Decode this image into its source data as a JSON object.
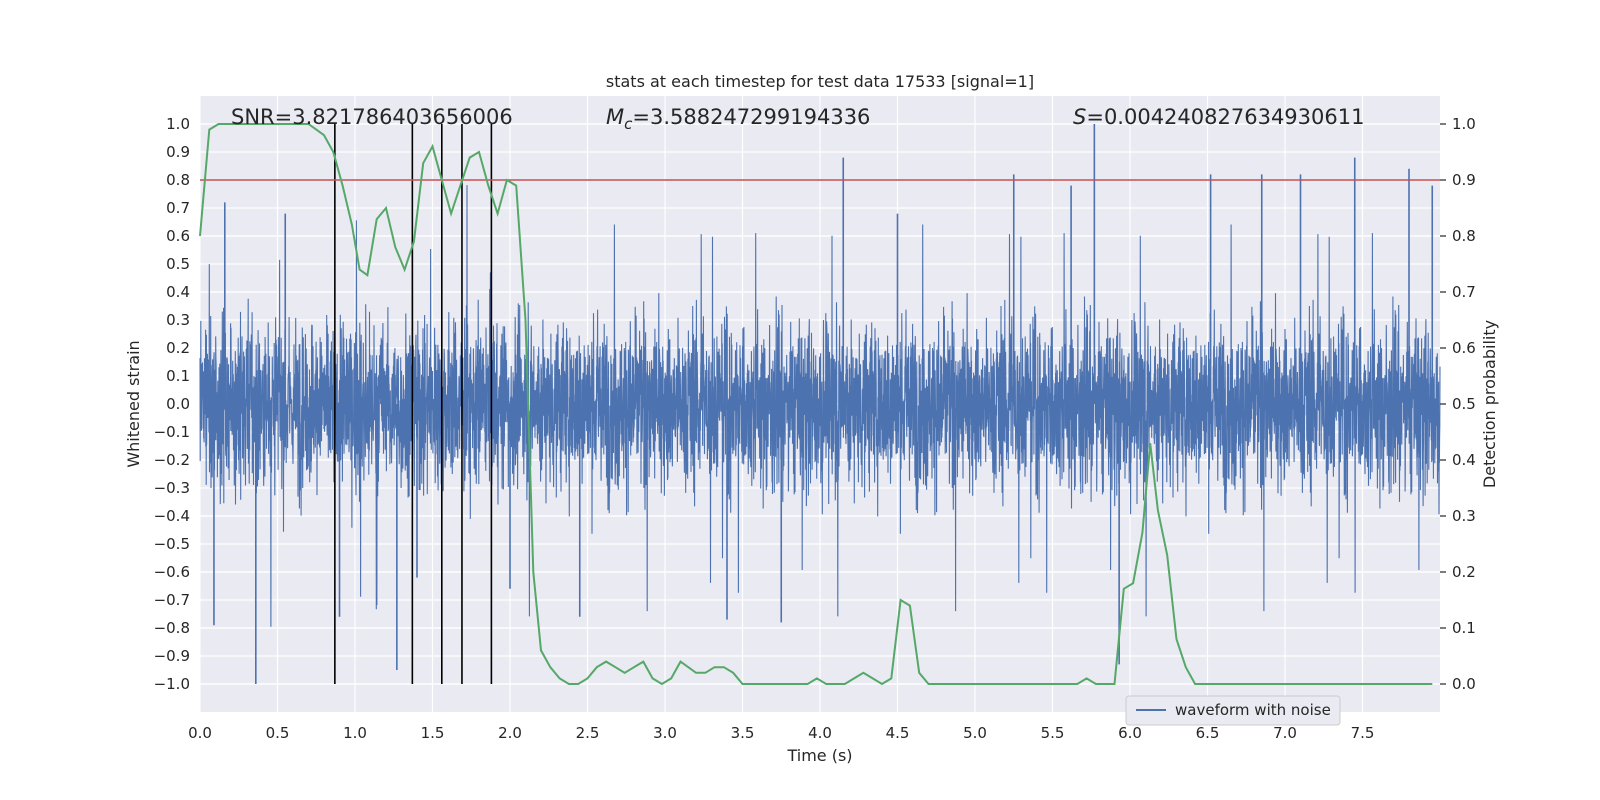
{
  "chart_data": {
    "type": "line",
    "title": "stats at each timestep for test data 17533 [signal=1]",
    "xlabel": "Time (s)",
    "ylabel": "Whitened strain",
    "ylabel_right": "Detection probability",
    "xlim": [
      0,
      8.0
    ],
    "ylim": [
      -1.1,
      1.1
    ],
    "ylim_right": [
      -0.05,
      1.05
    ],
    "x_ticks": [
      0.0,
      0.5,
      1.0,
      1.5,
      2.0,
      2.5,
      3.0,
      3.5,
      4.0,
      4.5,
      5.0,
      5.5,
      6.0,
      6.5,
      7.0,
      7.5
    ],
    "x_tick_labels": [
      "0.0",
      "0.5",
      "1.0",
      "1.5",
      "2.0",
      "2.5",
      "3.0",
      "3.5",
      "4.0",
      "4.5",
      "5.0",
      "5.5",
      "6.0",
      "6.5",
      "7.0",
      "7.5"
    ],
    "y_ticks": [
      -1.0,
      -0.9,
      -0.8,
      -0.7,
      -0.6,
      -0.5,
      -0.4,
      -0.3,
      -0.2,
      -0.1,
      0.0,
      0.1,
      0.2,
      0.3,
      0.4,
      0.5,
      0.6,
      0.7,
      0.8,
      0.9,
      1.0
    ],
    "y_tick_labels": [
      "−1.0",
      "−0.9",
      "−0.8",
      "−0.7",
      "−0.6",
      "−0.5",
      "−0.4",
      "−0.3",
      "−0.2",
      "−0.1",
      "0.0",
      "0.1",
      "0.2",
      "0.3",
      "0.4",
      "0.5",
      "0.6",
      "0.7",
      "0.8",
      "0.9",
      "1.0"
    ],
    "y_right_ticks": [
      0.0,
      0.1,
      0.2,
      0.3,
      0.4,
      0.5,
      0.6,
      0.7,
      0.8,
      0.9,
      1.0
    ],
    "y_right_tick_labels": [
      "0.0",
      "0.1",
      "0.2",
      "0.3",
      "0.4",
      "0.5",
      "0.6",
      "0.7",
      "0.8",
      "0.9",
      "1.0"
    ],
    "annotations": {
      "snr": "SNR=3.821786403656006",
      "mc_symbol": "M",
      "mc_subscript": "c",
      "mc_value": "=3.588247299194336",
      "s_symbol": "S",
      "s_value": "=0.004240827634930611"
    },
    "legend": {
      "label": "waveform with noise",
      "position": "lower-right"
    },
    "waveform": {
      "name": "waveform with noise",
      "color": "#4c72b0",
      "note": "dense noisy strain, band roughly ±0.4 with spikes to ±1.0",
      "spikes": [
        [
          0.36,
          -1.0
        ],
        [
          0.09,
          -0.79
        ],
        [
          0.16,
          0.72
        ],
        [
          0.55,
          0.68
        ],
        [
          0.9,
          -0.76
        ],
        [
          1.27,
          -0.95
        ],
        [
          1.4,
          -0.62
        ],
        [
          2.0,
          -0.66
        ],
        [
          2.45,
          -0.76
        ],
        [
          3.4,
          -0.77
        ],
        [
          3.75,
          -0.78
        ],
        [
          4.15,
          0.88
        ],
        [
          4.5,
          0.68
        ],
        [
          5.25,
          0.82
        ],
        [
          5.62,
          0.78
        ],
        [
          5.77,
          1.0
        ],
        [
          5.93,
          -0.93
        ],
        [
          6.52,
          0.82
        ],
        [
          6.85,
          0.82
        ],
        [
          7.1,
          0.82
        ],
        [
          7.45,
          0.88
        ],
        [
          7.8,
          0.84
        ],
        [
          7.95,
          0.78
        ]
      ]
    },
    "detection_probability": {
      "name": "detection probability",
      "color": "#55a868",
      "x": [
        0.0,
        0.06,
        0.12,
        0.2,
        0.3,
        0.4,
        0.5,
        0.6,
        0.7,
        0.75,
        0.8,
        0.86,
        0.92,
        0.98,
        1.03,
        1.08,
        1.14,
        1.2,
        1.26,
        1.32,
        1.38,
        1.44,
        1.5,
        1.56,
        1.62,
        1.68,
        1.74,
        1.8,
        1.86,
        1.92,
        1.98,
        2.04,
        2.1,
        2.15,
        2.2,
        2.26,
        2.32,
        2.38,
        2.44,
        2.5,
        2.56,
        2.62,
        2.68,
        2.74,
        2.8,
        2.86,
        2.92,
        2.98,
        3.04,
        3.1,
        3.15,
        3.2,
        3.26,
        3.32,
        3.38,
        3.44,
        3.5,
        3.56,
        3.62,
        3.68,
        3.74,
        3.8,
        3.86,
        3.92,
        3.98,
        4.04,
        4.1,
        4.16,
        4.22,
        4.28,
        4.34,
        4.4,
        4.46,
        4.52,
        4.58,
        4.64,
        4.7,
        4.76,
        4.82,
        4.88,
        4.94,
        5.0,
        5.06,
        5.12,
        5.18,
        5.24,
        5.3,
        5.36,
        5.42,
        5.48,
        5.54,
        5.6,
        5.66,
        5.72,
        5.78,
        5.84,
        5.9,
        5.96,
        6.02,
        6.08,
        6.13,
        6.18,
        6.24,
        6.3,
        6.36,
        6.42,
        6.48,
        6.54,
        6.6,
        6.66,
        6.72,
        6.8,
        6.9,
        7.0,
        7.1,
        7.2,
        7.3,
        7.4,
        7.5,
        7.6,
        7.7,
        7.8,
        7.9,
        7.95
      ],
      "y": [
        0.8,
        0.99,
        1.0,
        1.0,
        1.0,
        1.0,
        1.0,
        1.0,
        1.0,
        0.99,
        0.98,
        0.95,
        0.89,
        0.82,
        0.74,
        0.73,
        0.83,
        0.85,
        0.78,
        0.74,
        0.79,
        0.93,
        0.96,
        0.9,
        0.84,
        0.89,
        0.94,
        0.95,
        0.89,
        0.84,
        0.9,
        0.89,
        0.65,
        0.2,
        0.06,
        0.03,
        0.01,
        0.0,
        0.0,
        0.01,
        0.03,
        0.04,
        0.03,
        0.02,
        0.03,
        0.04,
        0.01,
        0.0,
        0.01,
        0.04,
        0.03,
        0.02,
        0.02,
        0.03,
        0.03,
        0.02,
        0.0,
        0.0,
        0.0,
        0.0,
        0.0,
        0.0,
        0.0,
        0.0,
        0.01,
        0.0,
        0.0,
        0.0,
        0.01,
        0.02,
        0.01,
        0.0,
        0.01,
        0.15,
        0.14,
        0.02,
        0.0,
        0.0,
        0.0,
        0.0,
        0.0,
        0.0,
        0.0,
        0.0,
        0.0,
        0.0,
        0.0,
        0.0,
        0.0,
        0.0,
        0.0,
        0.0,
        0.0,
        0.01,
        0.0,
        0.0,
        0.0,
        0.17,
        0.18,
        0.27,
        0.43,
        0.31,
        0.23,
        0.08,
        0.03,
        0.0,
        0.0,
        0.0,
        0.0,
        0.0,
        0.0,
        0.0,
        0.0,
        0.0,
        0.0,
        0.0,
        0.0,
        0.0,
        0.0,
        0.0,
        0.0,
        0.0,
        0.0,
        0.0
      ]
    },
    "threshold": {
      "value": 0.9,
      "axis": "right",
      "color": "#c44e52"
    },
    "event_lines": {
      "x": [
        0.87,
        1.37,
        1.56,
        1.69,
        1.88
      ],
      "color": "#000000"
    }
  }
}
